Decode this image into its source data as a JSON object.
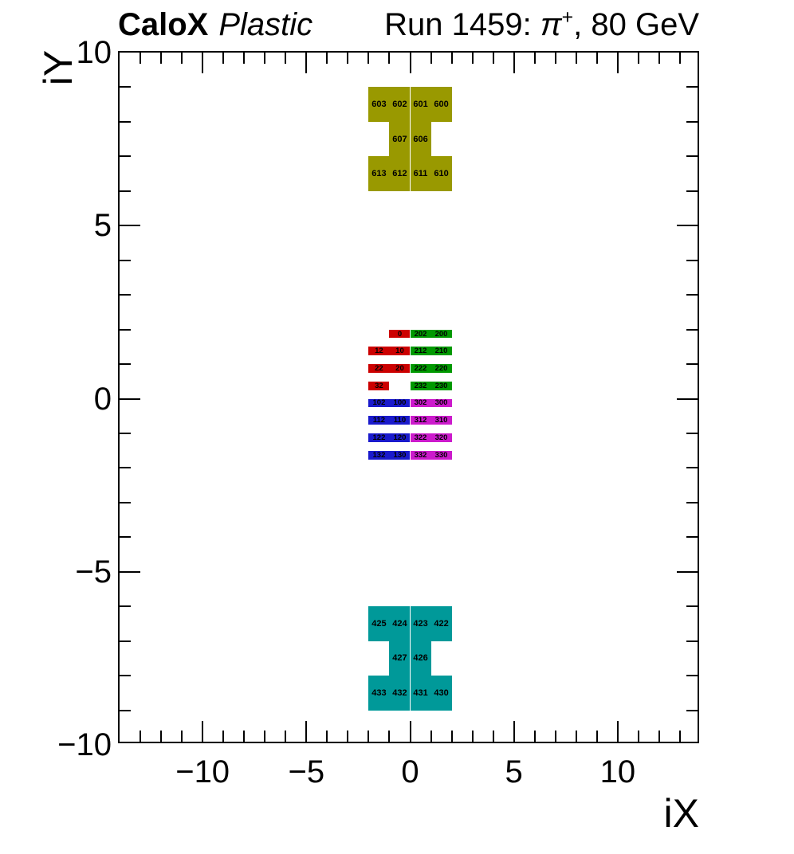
{
  "header": {
    "brand": "CaloX",
    "subtitle": "Plastic",
    "right_title": {
      "prefix": "Run 1459: ",
      "particle": "π",
      "charge": "+",
      "suffix": ", 80 GeV"
    }
  },
  "chart_data": {
    "type": "heatmap",
    "title": "CaloX Plastic",
    "right_title": "Run 1459: π+, 80 GeV",
    "xlabel": "iX",
    "ylabel": "iY",
    "xlim": [
      -14,
      14
    ],
    "ylim": [
      -10,
      10
    ],
    "grid": false,
    "legend": "none",
    "ticks": {
      "minor_step": 1,
      "mirrored": true,
      "x_major": [
        {
          "v": -10,
          "label": "−10"
        },
        {
          "v": -5,
          "label": "−5"
        },
        {
          "v": 0,
          "label": "0"
        },
        {
          "v": 5,
          "label": "5"
        },
        {
          "v": 10,
          "label": "10"
        }
      ],
      "y_major": [
        {
          "v": -10,
          "label": "−10"
        },
        {
          "v": -5,
          "label": "−5"
        },
        {
          "v": 0,
          "label": "0"
        },
        {
          "v": 5,
          "label": "5"
        },
        {
          "v": 10,
          "label": "10"
        }
      ]
    },
    "palette": {
      "red": "#cc0000",
      "green": "#009900",
      "blue": "#1a1acc",
      "magenta": "#cc1acc",
      "olive": "#999900",
      "teal": "#009999"
    },
    "cells": [
      {
        "t": "603",
        "x": -2,
        "y": 9,
        "h": 1,
        "c": "olive"
      },
      {
        "t": "602",
        "x": -1,
        "y": 9,
        "h": 1,
        "c": "olive"
      },
      {
        "t": "601",
        "x": 0,
        "y": 9,
        "h": 1,
        "c": "olive"
      },
      {
        "t": "600",
        "x": 1,
        "y": 9,
        "h": 1,
        "c": "olive"
      },
      {
        "t": "607",
        "x": -1,
        "y": 8,
        "h": 1,
        "c": "olive"
      },
      {
        "t": "606",
        "x": 0,
        "y": 8,
        "h": 1,
        "c": "olive"
      },
      {
        "t": "613",
        "x": -2,
        "y": 7,
        "h": 1,
        "c": "olive"
      },
      {
        "t": "612",
        "x": -1,
        "y": 7,
        "h": 1,
        "c": "olive"
      },
      {
        "t": "611",
        "x": 0,
        "y": 7,
        "h": 1,
        "c": "olive"
      },
      {
        "t": "610",
        "x": 1,
        "y": 7,
        "h": 1,
        "c": "olive"
      },
      {
        "t": "0",
        "x": -1,
        "y": 2,
        "h": 0.25,
        "c": "red"
      },
      {
        "t": "202",
        "x": 0,
        "y": 2,
        "h": 0.25,
        "c": "green"
      },
      {
        "t": "200",
        "x": 1,
        "y": 2,
        "h": 0.25,
        "c": "green"
      },
      {
        "t": "12",
        "x": -2,
        "y": 1.5,
        "h": 0.25,
        "c": "red"
      },
      {
        "t": "10",
        "x": -1,
        "y": 1.5,
        "h": 0.25,
        "c": "red"
      },
      {
        "t": "212",
        "x": 0,
        "y": 1.5,
        "h": 0.25,
        "c": "green"
      },
      {
        "t": "210",
        "x": 1,
        "y": 1.5,
        "h": 0.25,
        "c": "green"
      },
      {
        "t": "22",
        "x": -2,
        "y": 1,
        "h": 0.25,
        "c": "red"
      },
      {
        "t": "20",
        "x": -1,
        "y": 1,
        "h": 0.25,
        "c": "red"
      },
      {
        "t": "222",
        "x": 0,
        "y": 1,
        "h": 0.25,
        "c": "green"
      },
      {
        "t": "220",
        "x": 1,
        "y": 1,
        "h": 0.25,
        "c": "green"
      },
      {
        "t": "32",
        "x": -2,
        "y": 0.5,
        "h": 0.25,
        "c": "red"
      },
      {
        "t": "232",
        "x": 0,
        "y": 0.5,
        "h": 0.25,
        "c": "green"
      },
      {
        "t": "230",
        "x": 1,
        "y": 0.5,
        "h": 0.25,
        "c": "green"
      },
      {
        "t": "102",
        "x": -2,
        "y": 0,
        "h": 0.25,
        "c": "blue"
      },
      {
        "t": "100",
        "x": -1,
        "y": 0,
        "h": 0.25,
        "c": "blue"
      },
      {
        "t": "302",
        "x": 0,
        "y": 0,
        "h": 0.25,
        "c": "magenta"
      },
      {
        "t": "300",
        "x": 1,
        "y": 0,
        "h": 0.25,
        "c": "magenta"
      },
      {
        "t": "112",
        "x": -2,
        "y": -0.5,
        "h": 0.25,
        "c": "blue"
      },
      {
        "t": "110",
        "x": -1,
        "y": -0.5,
        "h": 0.25,
        "c": "blue"
      },
      {
        "t": "312",
        "x": 0,
        "y": -0.5,
        "h": 0.25,
        "c": "magenta"
      },
      {
        "t": "310",
        "x": 1,
        "y": -0.5,
        "h": 0.25,
        "c": "magenta"
      },
      {
        "t": "122",
        "x": -2,
        "y": -1,
        "h": 0.25,
        "c": "blue"
      },
      {
        "t": "120",
        "x": -1,
        "y": -1,
        "h": 0.25,
        "c": "blue"
      },
      {
        "t": "322",
        "x": 0,
        "y": -1,
        "h": 0.25,
        "c": "magenta"
      },
      {
        "t": "320",
        "x": 1,
        "y": -1,
        "h": 0.25,
        "c": "magenta"
      },
      {
        "t": "132",
        "x": -2,
        "y": -1.5,
        "h": 0.25,
        "c": "blue"
      },
      {
        "t": "130",
        "x": -1,
        "y": -1.5,
        "h": 0.25,
        "c": "blue"
      },
      {
        "t": "332",
        "x": 0,
        "y": -1.5,
        "h": 0.25,
        "c": "magenta"
      },
      {
        "t": "330",
        "x": 1,
        "y": -1.5,
        "h": 0.25,
        "c": "magenta"
      },
      {
        "t": "425",
        "x": -2,
        "y": -6,
        "h": 1,
        "c": "teal"
      },
      {
        "t": "424",
        "x": -1,
        "y": -6,
        "h": 1,
        "c": "teal"
      },
      {
        "t": "423",
        "x": 0,
        "y": -6,
        "h": 1,
        "c": "teal"
      },
      {
        "t": "422",
        "x": 1,
        "y": -6,
        "h": 1,
        "c": "teal"
      },
      {
        "t": "427",
        "x": -1,
        "y": -7,
        "h": 1,
        "c": "teal"
      },
      {
        "t": "426",
        "x": 0,
        "y": -7,
        "h": 1,
        "c": "teal"
      },
      {
        "t": "433",
        "x": -2,
        "y": -8,
        "h": 1,
        "c": "teal"
      },
      {
        "t": "432",
        "x": -1,
        "y": -8,
        "h": 1,
        "c": "teal"
      },
      {
        "t": "431",
        "x": 0,
        "y": -8,
        "h": 1,
        "c": "teal"
      },
      {
        "t": "430",
        "x": 1,
        "y": -8,
        "h": 1,
        "c": "teal"
      }
    ]
  }
}
